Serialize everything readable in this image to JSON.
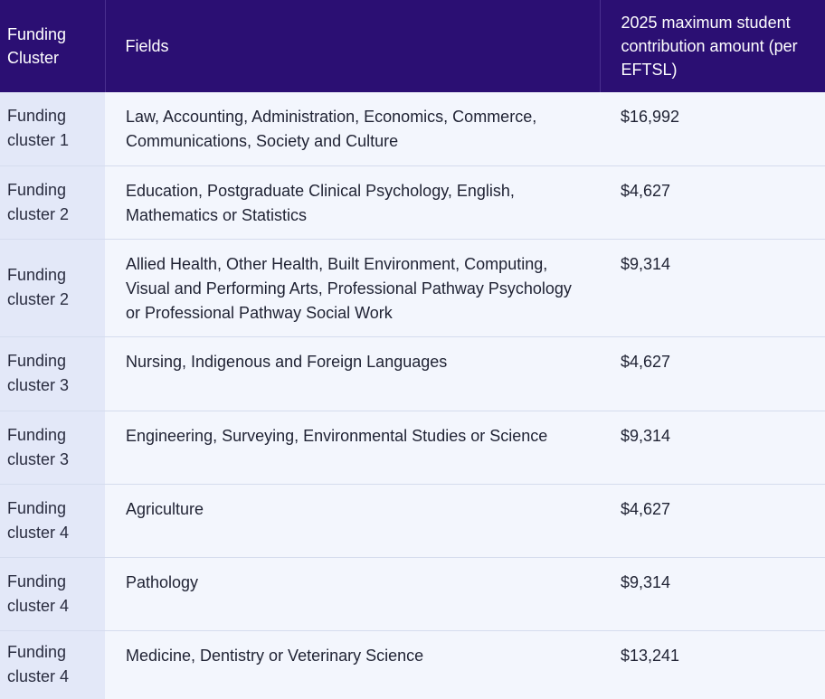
{
  "header": {
    "cluster": "Funding Cluster",
    "fields": "Fields",
    "amount": "2025 maximum student contribution amount (per EFTSL)"
  },
  "rows": [
    {
      "cluster": "Funding cluster 1",
      "fields": "Law, Accounting, Administration, Economics, Commerce, Communications, Society and Culture",
      "amount": "$16,992"
    },
    {
      "cluster": "Funding cluster 2",
      "fields": "Education, Postgraduate Clinical Psychology, English, Mathematics or Statistics",
      "amount": "$4,627"
    },
    {
      "cluster": "Funding cluster 2",
      "fields": "Allied Health, Other Health, Built Environment, Computing, Visual and Performing Arts, Professional Pathway Psychology or Professional Pathway Social Work",
      "amount": "$9,314"
    },
    {
      "cluster": "Funding cluster 3",
      "fields": "Nursing, Indigenous and Foreign Languages",
      "amount": "$4,627"
    },
    {
      "cluster": "Funding cluster 3",
      "fields": "Engineering, Surveying, Environmental Studies or Science",
      "amount": "$9,314"
    },
    {
      "cluster": "Funding cluster 4",
      "fields": "Agriculture",
      "amount": "$4,627"
    },
    {
      "cluster": "Funding cluster 4",
      "fields": "Pathology",
      "amount": "$9,314"
    },
    {
      "cluster": "Funding cluster 4",
      "fields": "Medicine, Dentistry or Veterinary Science",
      "amount": "$13,241"
    }
  ]
}
